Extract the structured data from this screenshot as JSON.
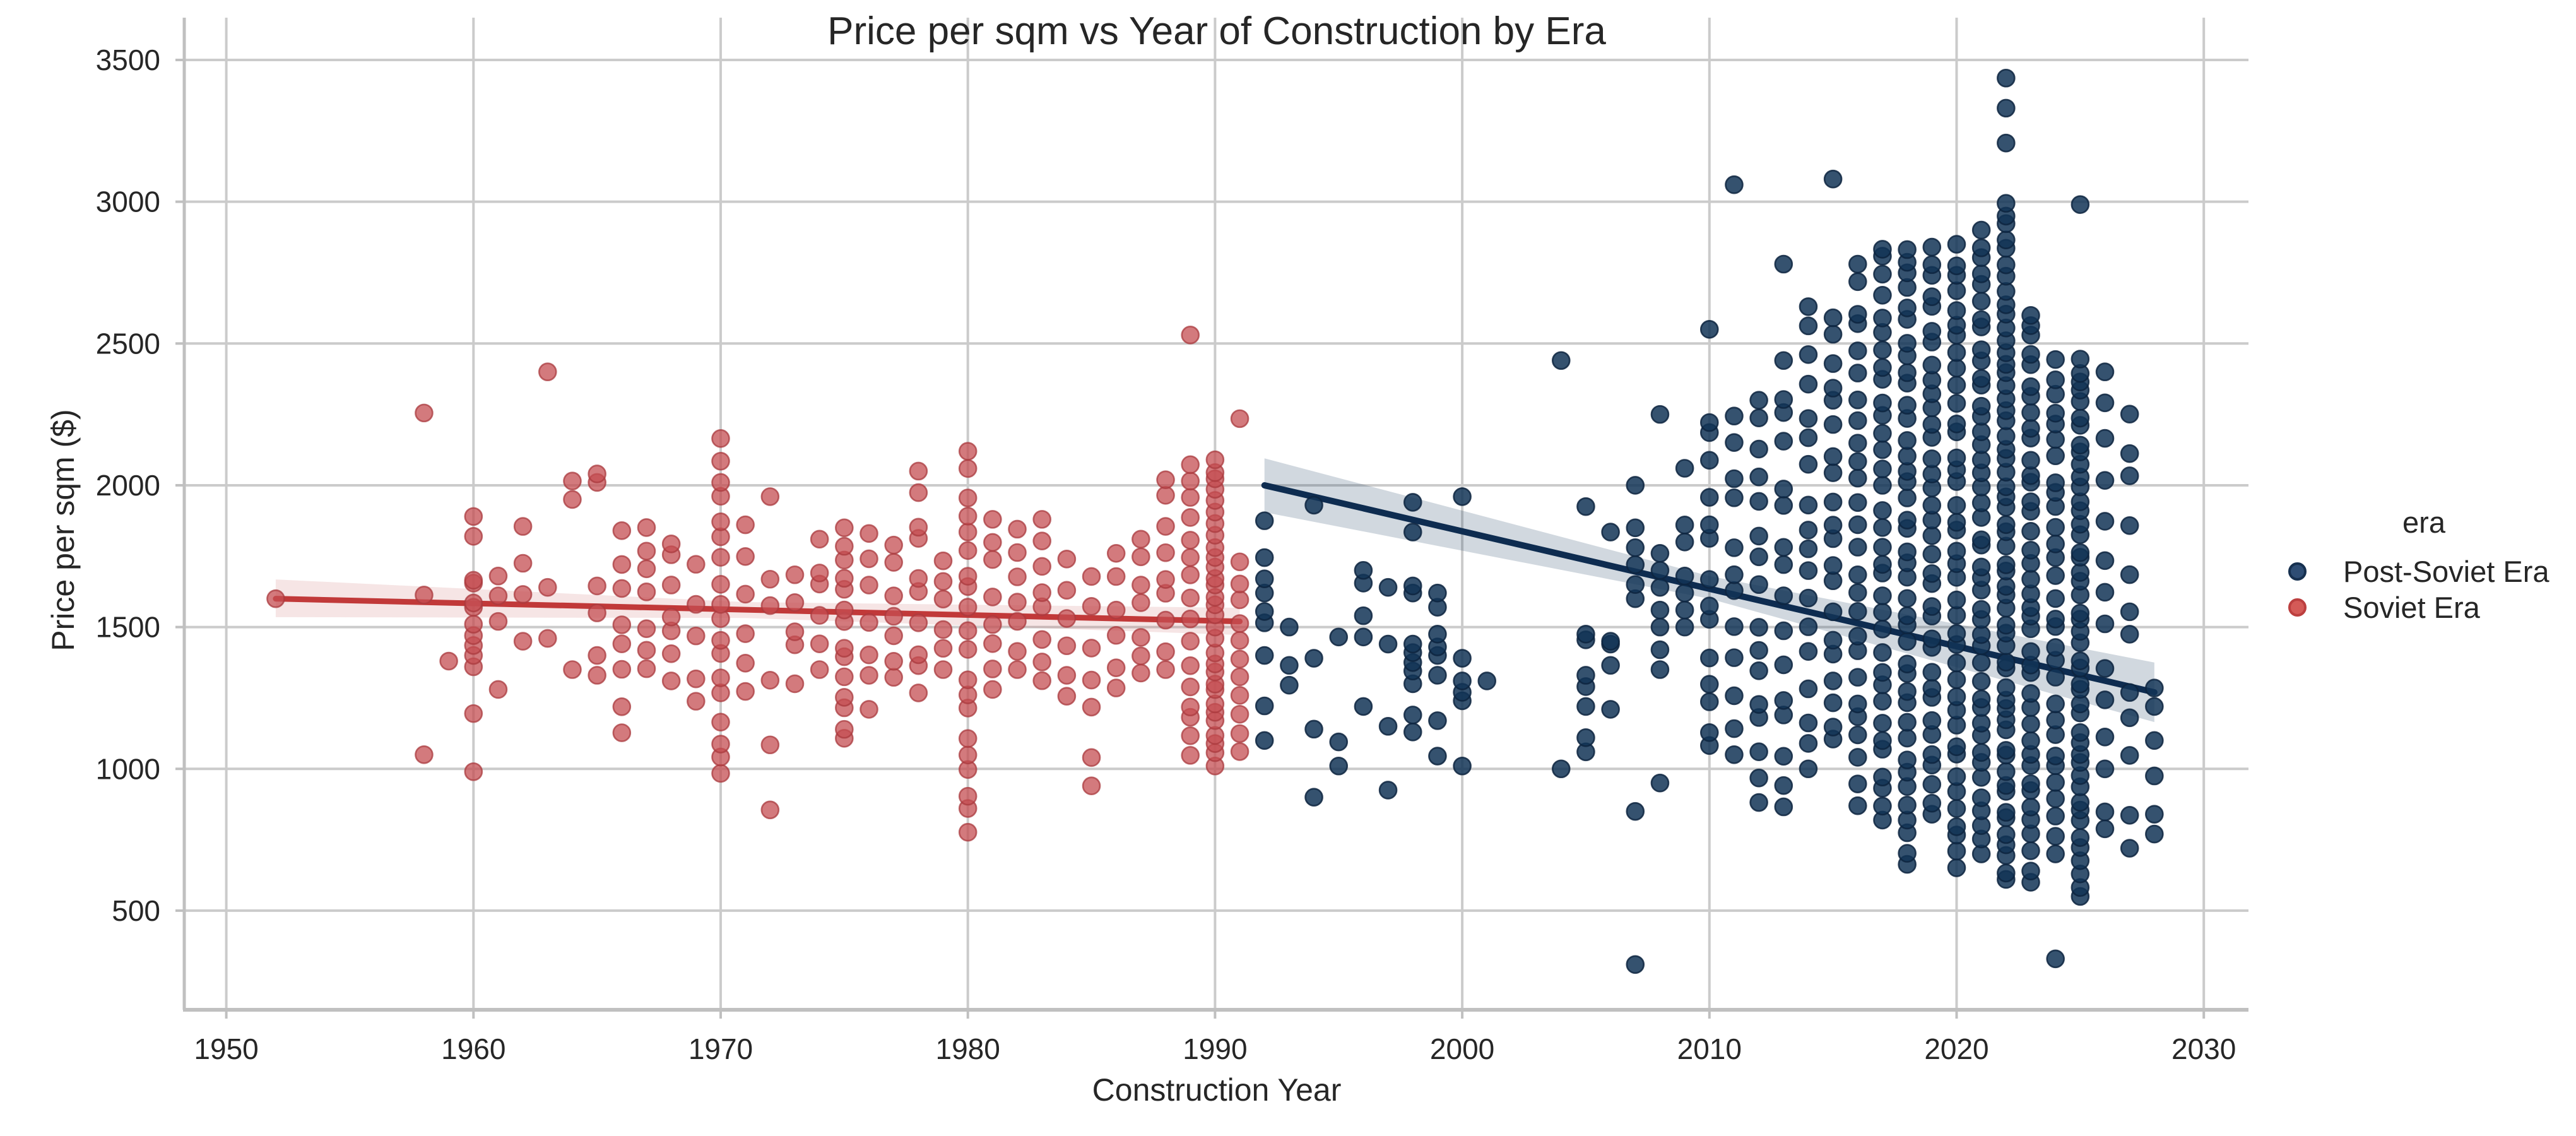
{
  "title": "Price per sqm vs Year of Construction by Era",
  "axes": {
    "xlabel": "Construction Year",
    "ylabel": "Price per sqm ($)",
    "x_ticks": [
      "1950",
      "1960",
      "1970",
      "1980",
      "1990",
      "2000",
      "2010",
      "2020",
      "2030"
    ],
    "x_tick_values": [
      1950,
      1960,
      1970,
      1980,
      1990,
      2000,
      2010,
      2020,
      2030
    ],
    "y_ticks": [
      "500",
      "1000",
      "1500",
      "2000",
      "2500",
      "3000",
      "3500"
    ],
    "y_tick_values": [
      500,
      1000,
      1500,
      2000,
      2500,
      3000,
      3500
    ],
    "grid": "on"
  },
  "legend": {
    "title": "era",
    "items": [
      {
        "label": "Post-Soviet Era",
        "color": "#2e4d74",
        "edge": "#16304f"
      },
      {
        "label": "Soviet Era",
        "color": "#d45a57",
        "edge": "#bc3f3f"
      }
    ],
    "position": "right-middle"
  },
  "colors": {
    "background": "#ffffff",
    "gridline": "#cbcbcb",
    "spine": "#c0c0c0",
    "text": "#262626",
    "soviet_point": "#c44e52",
    "soviet_edge": "#a93a3e",
    "soviet_line": "#c13939",
    "soviet_band": "rgba(196,78,82,0.15)",
    "post_soviet_point": "#123456",
    "post_soviet_edge": "#0d2440",
    "post_soviet_line": "#0e2c50",
    "post_soviet_band": "rgba(27,58,95,0.20)"
  },
  "chart_data": {
    "type": "scatter",
    "title": "Price per sqm vs Year of Construction by Era",
    "xlabel": "Construction Year",
    "ylabel": "Price per sqm ($)",
    "x_range": [
      1948.3,
      2031.8
    ],
    "y_range": [
      150,
      3645
    ],
    "legend_position": "center right",
    "grid": true,
    "marker": {
      "radius": 13.5,
      "edge_width": 2.6,
      "alpha": 0.8
    },
    "series": [
      {
        "name": "Soviet Era",
        "color": "#c44e52",
        "points": [
          [
            1952,
            1600
          ],
          [
            1958,
            2255
          ],
          [
            1958,
            1613
          ],
          [
            1958,
            1050
          ],
          [
            1959,
            1380
          ],
          [
            1960,
            990
          ],
          [
            1960,
            1195
          ],
          [
            1960,
            1360
          ],
          [
            1960,
            1400
          ],
          [
            1960,
            1435
          ],
          [
            1960,
            1470
          ],
          [
            1960,
            1510
          ],
          [
            1960,
            1570
          ],
          [
            1960,
            1585
          ],
          [
            1960,
            1655
          ],
          [
            1960,
            1665
          ],
          [
            1960,
            1820
          ],
          [
            1960,
            1890
          ],
          [
            1961,
            1280
          ],
          [
            1961,
            1520
          ],
          [
            1961,
            1610
          ],
          [
            1961,
            1680
          ],
          [
            1962,
            1450
          ],
          [
            1962,
            1615
          ],
          [
            1962,
            1725
          ],
          [
            1962,
            1855
          ],
          [
            1963,
            1460
          ],
          [
            1963,
            1640
          ],
          [
            1963,
            2400
          ],
          [
            1964,
            1350
          ],
          [
            1964,
            1950
          ],
          [
            1964,
            2015
          ],
          [
            1965,
            1330
          ],
          [
            1965,
            1400
          ],
          [
            1965,
            1550
          ],
          [
            1965,
            1645
          ],
          [
            1965,
            2010
          ],
          [
            1965,
            2040
          ],
          [
            1989,
            2530
          ],
          [
            1991,
            2235
          ]
        ],
        "columns": [
          [
            1966,
            8,
            1120,
            1840
          ],
          [
            1967,
            7,
            1330,
            1870
          ],
          [
            1968,
            7,
            1310,
            1820
          ],
          [
            1969,
            5,
            1230,
            1750
          ],
          [
            1970,
            18,
            970,
            2165
          ],
          [
            1971,
            6,
            1240,
            1900
          ],
          [
            1972,
            6,
            830,
            1960
          ],
          [
            1973,
            5,
            1300,
            1720
          ],
          [
            1974,
            6,
            1350,
            1810
          ],
          [
            1975,
            14,
            1090,
            1850
          ],
          [
            1976,
            7,
            1210,
            1830
          ],
          [
            1977,
            7,
            1300,
            1800
          ],
          [
            1978,
            10,
            1250,
            2050
          ],
          [
            1979,
            6,
            1350,
            1750
          ],
          [
            1980,
            20,
            770,
            2120
          ],
          [
            1981,
            8,
            1280,
            1880
          ],
          [
            1982,
            7,
            1350,
            1850
          ],
          [
            1983,
            8,
            1300,
            1880
          ],
          [
            1984,
            6,
            1250,
            1740
          ],
          [
            1985,
            7,
            940,
            1720
          ],
          [
            1986,
            6,
            1280,
            1760
          ],
          [
            1987,
            7,
            1320,
            1810
          ],
          [
            1988,
            9,
            1350,
            2020
          ],
          [
            1989,
            16,
            1030,
            2080
          ],
          [
            1990,
            30,
            1010,
            2090
          ],
          [
            1991,
            11,
            1060,
            1730
          ]
        ],
        "regression": {
          "line": [
            [
              1952,
              1600
            ],
            [
              1991,
              1520
            ]
          ],
          "band": [
            [
              1952,
              1535,
              1668
            ],
            [
              1971,
              1532,
              1588
            ],
            [
              1991,
              1472,
              1568
            ]
          ]
        }
      },
      {
        "name": "Post-Soviet Era",
        "color": "#123456",
        "points": [
          [
            1992,
            1100
          ],
          [
            1992,
            1222
          ],
          [
            1992,
            1400
          ],
          [
            1992,
            1515
          ],
          [
            1992,
            1555
          ],
          [
            1992,
            1620
          ],
          [
            1992,
            1670
          ],
          [
            1992,
            1745
          ],
          [
            1992,
            1875
          ],
          [
            1993,
            1295
          ],
          [
            1993,
            1365
          ],
          [
            1993,
            1500
          ],
          [
            1994,
            900
          ],
          [
            1994,
            1140
          ],
          [
            1994,
            1390
          ],
          [
            1994,
            1930
          ],
          [
            1995,
            1010
          ],
          [
            1995,
            1095
          ],
          [
            1995,
            1465
          ],
          [
            1996,
            1220
          ],
          [
            1996,
            1465
          ],
          [
            1996,
            1540
          ],
          [
            1996,
            1655
          ],
          [
            1996,
            1700
          ],
          [
            1997,
            925
          ],
          [
            1997,
            1150
          ],
          [
            1997,
            1440
          ],
          [
            1997,
            1640
          ],
          [
            1998,
            1130
          ],
          [
            1998,
            1190
          ],
          [
            1998,
            1300
          ],
          [
            1998,
            1345
          ],
          [
            1998,
            1375
          ],
          [
            1998,
            1410
          ],
          [
            1998,
            1440
          ],
          [
            1998,
            1620
          ],
          [
            1998,
            1645
          ],
          [
            1998,
            1835
          ],
          [
            1998,
            1940
          ],
          [
            1999,
            1045
          ],
          [
            1999,
            1170
          ],
          [
            1999,
            1330
          ],
          [
            1999,
            1400
          ],
          [
            1999,
            1430
          ],
          [
            1999,
            1475
          ],
          [
            1999,
            1570
          ],
          [
            1999,
            1620
          ],
          [
            2000,
            1010
          ],
          [
            2000,
            1240
          ],
          [
            2000,
            1270
          ],
          [
            2000,
            1310
          ],
          [
            2000,
            1390
          ],
          [
            2000,
            1960
          ],
          [
            2001,
            1310
          ],
          [
            2004,
            1000
          ],
          [
            2004,
            2440
          ],
          [
            2005,
            1060
          ],
          [
            2005,
            1110
          ],
          [
            2005,
            1220
          ],
          [
            2005,
            1290
          ],
          [
            2005,
            1330
          ],
          [
            2005,
            1455
          ],
          [
            2005,
            1475
          ],
          [
            2005,
            1925
          ],
          [
            2006,
            1210
          ],
          [
            2006,
            1365
          ],
          [
            2006,
            1440
          ],
          [
            2006,
            1450
          ],
          [
            2006,
            1835
          ],
          [
            2007,
            310
          ],
          [
            2007,
            850
          ],
          [
            2007,
            1600
          ],
          [
            2007,
            1650
          ],
          [
            2007,
            1720
          ],
          [
            2007,
            1780
          ],
          [
            2007,
            1850
          ],
          [
            2007,
            2000
          ],
          [
            2008,
            950
          ],
          [
            2008,
            1350
          ],
          [
            2008,
            1420
          ],
          [
            2008,
            1500
          ],
          [
            2008,
            1560
          ],
          [
            2008,
            1640
          ],
          [
            2008,
            1700
          ],
          [
            2008,
            1760
          ],
          [
            2008,
            2250
          ],
          [
            2009,
            1500
          ],
          [
            2009,
            1560
          ],
          [
            2009,
            1620
          ],
          [
            2009,
            1680
          ],
          [
            2009,
            1800
          ],
          [
            2009,
            1860
          ],
          [
            2009,
            2060
          ],
          [
            2010,
            2550
          ],
          [
            2011,
            3060
          ],
          [
            2013,
            2780
          ],
          [
            2015,
            3080
          ],
          [
            2022,
            3207
          ],
          [
            2022,
            3330
          ],
          [
            2022,
            3436
          ],
          [
            2024,
            330
          ],
          [
            2025,
            2990
          ],
          [
            2028,
            770
          ],
          [
            2028,
            840
          ],
          [
            2028,
            975
          ],
          [
            2028,
            1100
          ],
          [
            2028,
            1220
          ],
          [
            2028,
            1285
          ]
        ],
        "columns": [
          [
            2010,
            14,
            1050,
            2250
          ],
          [
            2011,
            12,
            1050,
            2250
          ],
          [
            2012,
            16,
            860,
            2300
          ],
          [
            2013,
            16,
            850,
            2440
          ],
          [
            2014,
            18,
            1000,
            2630
          ],
          [
            2015,
            20,
            1080,
            2600
          ],
          [
            2016,
            26,
            870,
            2780
          ],
          [
            2017,
            34,
            800,
            2850
          ],
          [
            2018,
            40,
            650,
            2850
          ],
          [
            2019,
            36,
            840,
            2840
          ],
          [
            2020,
            40,
            640,
            2850
          ],
          [
            2021,
            44,
            700,
            2900
          ],
          [
            2022,
            56,
            600,
            3000
          ],
          [
            2023,
            40,
            600,
            2615
          ],
          [
            2024,
            30,
            700,
            2450
          ],
          [
            2025,
            46,
            550,
            2450
          ],
          [
            2026,
            14,
            760,
            2400
          ],
          [
            2027,
            12,
            720,
            2300
          ]
        ],
        "regression": {
          "line": [
            [
              1992,
              2000
            ],
            [
              2028,
              1270
            ]
          ],
          "band": [
            [
              1992,
              1905,
              2095
            ],
            [
              2010,
              1600,
              1680
            ],
            [
              2028,
              1165,
              1375
            ]
          ]
        }
      }
    ]
  }
}
